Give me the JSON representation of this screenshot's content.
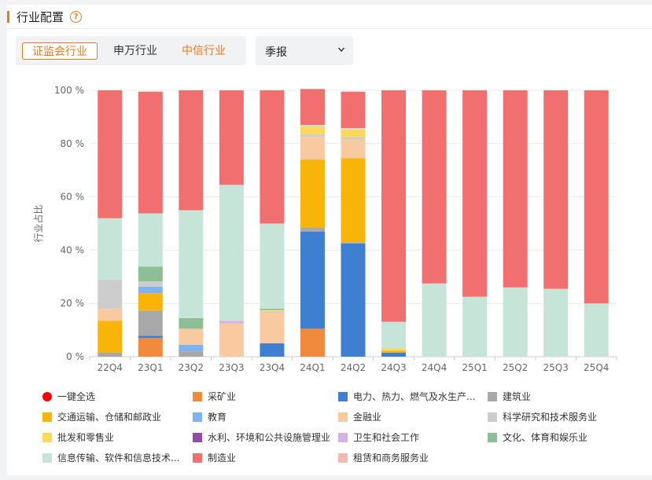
{
  "header": {
    "title": "行业配置",
    "help_icon": "question-circle-icon"
  },
  "tabs": [
    {
      "label": "证监会行业",
      "active": true
    },
    {
      "label": "申万行业",
      "active": false
    },
    {
      "label": "中信行业",
      "active": false
    }
  ],
  "period_select": {
    "value": "季报",
    "icon": "chevron-down-icon"
  },
  "chart_data": {
    "type": "bar",
    "stacked": true,
    "ylabel": "行业占比",
    "ylim": [
      0,
      100
    ],
    "y_ticks": [
      "0 %",
      "20 %",
      "40 %",
      "60 %",
      "80 %",
      "100 %"
    ],
    "grid": true,
    "legend_position": "bottom",
    "categories": [
      "22Q4",
      "23Q1",
      "23Q2",
      "23Q3",
      "23Q4",
      "24Q1",
      "24Q2",
      "24Q3",
      "24Q4",
      "25Q1",
      "25Q2",
      "25Q3",
      "25Q4"
    ],
    "series": [
      {
        "name": "采矿业",
        "color": "#f08a3c",
        "values": [
          0,
          7,
          0,
          0,
          0,
          10.5,
          0,
          0,
          0,
          0,
          0,
          0,
          0
        ]
      },
      {
        "name": "电力、热力、燃气及水生产和供应业",
        "color": "#3f7fd1",
        "values": [
          0,
          0.8,
          0,
          0,
          5,
          36.5,
          42.5,
          1.5,
          0,
          0,
          0,
          0,
          0
        ]
      },
      {
        "name": "建筑业",
        "color": "#a8a8a8",
        "values": [
          1.5,
          9.5,
          2,
          0,
          0,
          1.5,
          0.5,
          0,
          0,
          0,
          0,
          0,
          0
        ]
      },
      {
        "name": "交通运输、仓储和邮政业",
        "color": "#f9b40a",
        "values": [
          12,
          6.5,
          0,
          0,
          0,
          25.5,
          31.5,
          0.8,
          0,
          0,
          0,
          0,
          0
        ]
      },
      {
        "name": "教育",
        "color": "#7fb2f0",
        "values": [
          0,
          2.5,
          2.5,
          0,
          0,
          0,
          0,
          0,
          0,
          0,
          0,
          0,
          0
        ]
      },
      {
        "name": "金融业",
        "color": "#f9caa0",
        "values": [
          4.5,
          0,
          6,
          12.5,
          11.5,
          8.5,
          7,
          0,
          0,
          0,
          0,
          0,
          0
        ]
      },
      {
        "name": "科学研究和技术服务业",
        "color": "#cdcdcd",
        "values": [
          11,
          2,
          0,
          0,
          0.5,
          1,
          0.8,
          0,
          0,
          0,
          0,
          0,
          0
        ]
      },
      {
        "name": "批发和零售业",
        "color": "#fbd95d",
        "values": [
          0,
          0,
          0,
          0,
          0.5,
          3,
          3,
          0.8,
          0,
          0,
          0,
          0,
          0
        ]
      },
      {
        "name": "水利、环境和公共设施管理业",
        "color": "#8e4da8",
        "values": [
          0,
          0,
          0,
          0,
          0,
          0,
          0,
          0,
          0,
          0,
          0,
          0,
          0
        ]
      },
      {
        "name": "卫生和社会工作",
        "color": "#d6b2e3",
        "values": [
          0,
          0,
          0,
          1,
          0,
          0,
          0,
          0,
          0,
          0,
          0,
          0,
          0
        ]
      },
      {
        "name": "文化、体育和娱乐业",
        "color": "#8dbf96",
        "values": [
          0,
          5.5,
          4,
          0,
          0.5,
          0,
          0,
          0,
          0,
          0,
          0,
          0,
          0
        ]
      },
      {
        "name": "信息传输、软件和信息技术服务业",
        "color": "#c6e4d8",
        "values": [
          23,
          20,
          40.5,
          51,
          32,
          0.5,
          0.5,
          10,
          27.5,
          22.5,
          26,
          25.5,
          20
        ]
      },
      {
        "name": "制造业",
        "color": "#f26f6f",
        "values": [
          48,
          45.7,
          45,
          35.5,
          50,
          13.5,
          13.7,
          86.9,
          72.5,
          77.5,
          74,
          74.5,
          80
        ]
      },
      {
        "name": "租赁和商务服务业",
        "color": "#f2b8b2",
        "values": [
          0,
          0,
          0,
          0,
          0,
          0,
          0,
          0,
          0,
          0,
          0,
          0,
          0
        ]
      }
    ]
  },
  "legend": {
    "select_all": {
      "label": "一键全选",
      "color": "#ff0000"
    },
    "items": [
      {
        "label": "采矿业",
        "color": "#f08a3c"
      },
      {
        "label": "电力、热力、燃气及水生产...",
        "color": "#3f7fd1"
      },
      {
        "label": "建筑业",
        "color": "#a8a8a8"
      },
      {
        "label": "交通运输、仓储和邮政业",
        "color": "#f9b40a"
      },
      {
        "label": "教育",
        "color": "#7fb2f0"
      },
      {
        "label": "金融业",
        "color": "#f9caa0"
      },
      {
        "label": "科学研究和技术服务业",
        "color": "#cdcdcd"
      },
      {
        "label": "批发和零售业",
        "color": "#fbd95d"
      },
      {
        "label": "水利、环境和公共设施管理业",
        "color": "#8e4da8"
      },
      {
        "label": "卫生和社会工作",
        "color": "#d6b2e3"
      },
      {
        "label": "文化、体育和娱乐业",
        "color": "#8dbf96"
      },
      {
        "label": "信息传输、软件和信息技术...",
        "color": "#c6e4d8"
      },
      {
        "label": "制造业",
        "color": "#f26f6f"
      },
      {
        "label": "租赁和商务服务业",
        "color": "#f2b8b2"
      }
    ]
  }
}
